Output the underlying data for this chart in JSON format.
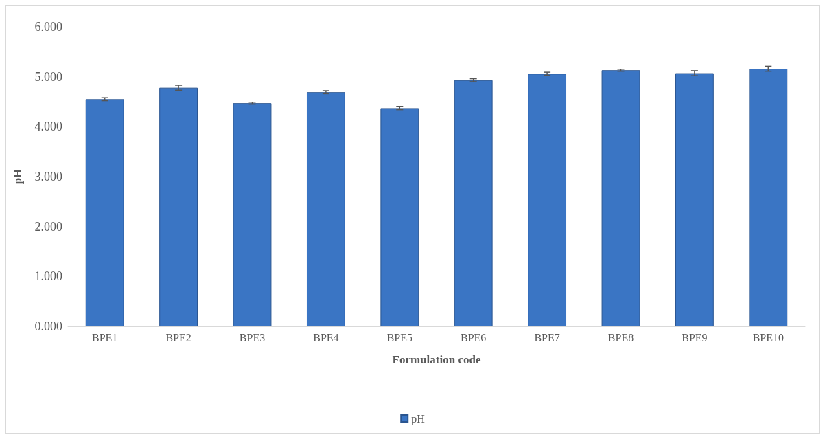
{
  "chart_data": {
    "type": "bar",
    "xlabel": "Formulation code",
    "ylabel": "pH",
    "categories": [
      "BPE1",
      "BPE2",
      "BPE3",
      "BPE4",
      "BPE5",
      "BPE6",
      "BPE7",
      "BPE8",
      "BPE9",
      "BPE10"
    ],
    "series": [
      {
        "name": "pH",
        "color": "#3a75c4",
        "values": [
          4.55,
          4.78,
          4.47,
          4.69,
          4.37,
          4.93,
          5.06,
          5.13,
          5.07,
          5.16
        ],
        "errors": [
          0.03,
          0.05,
          0.02,
          0.03,
          0.03,
          0.03,
          0.03,
          0.02,
          0.05,
          0.05
        ]
      }
    ],
    "ylim": [
      0,
      6
    ],
    "yticks": [
      {
        "value": 0,
        "label": "0.000"
      },
      {
        "value": 1,
        "label": "1.000"
      },
      {
        "value": 2,
        "label": "2.000"
      },
      {
        "value": 3,
        "label": "3.000"
      },
      {
        "value": 4,
        "label": "4.000"
      },
      {
        "value": 5,
        "label": "5.000"
      },
      {
        "value": 6,
        "label": "6.000"
      }
    ],
    "grid": false,
    "legend": "bottom"
  }
}
